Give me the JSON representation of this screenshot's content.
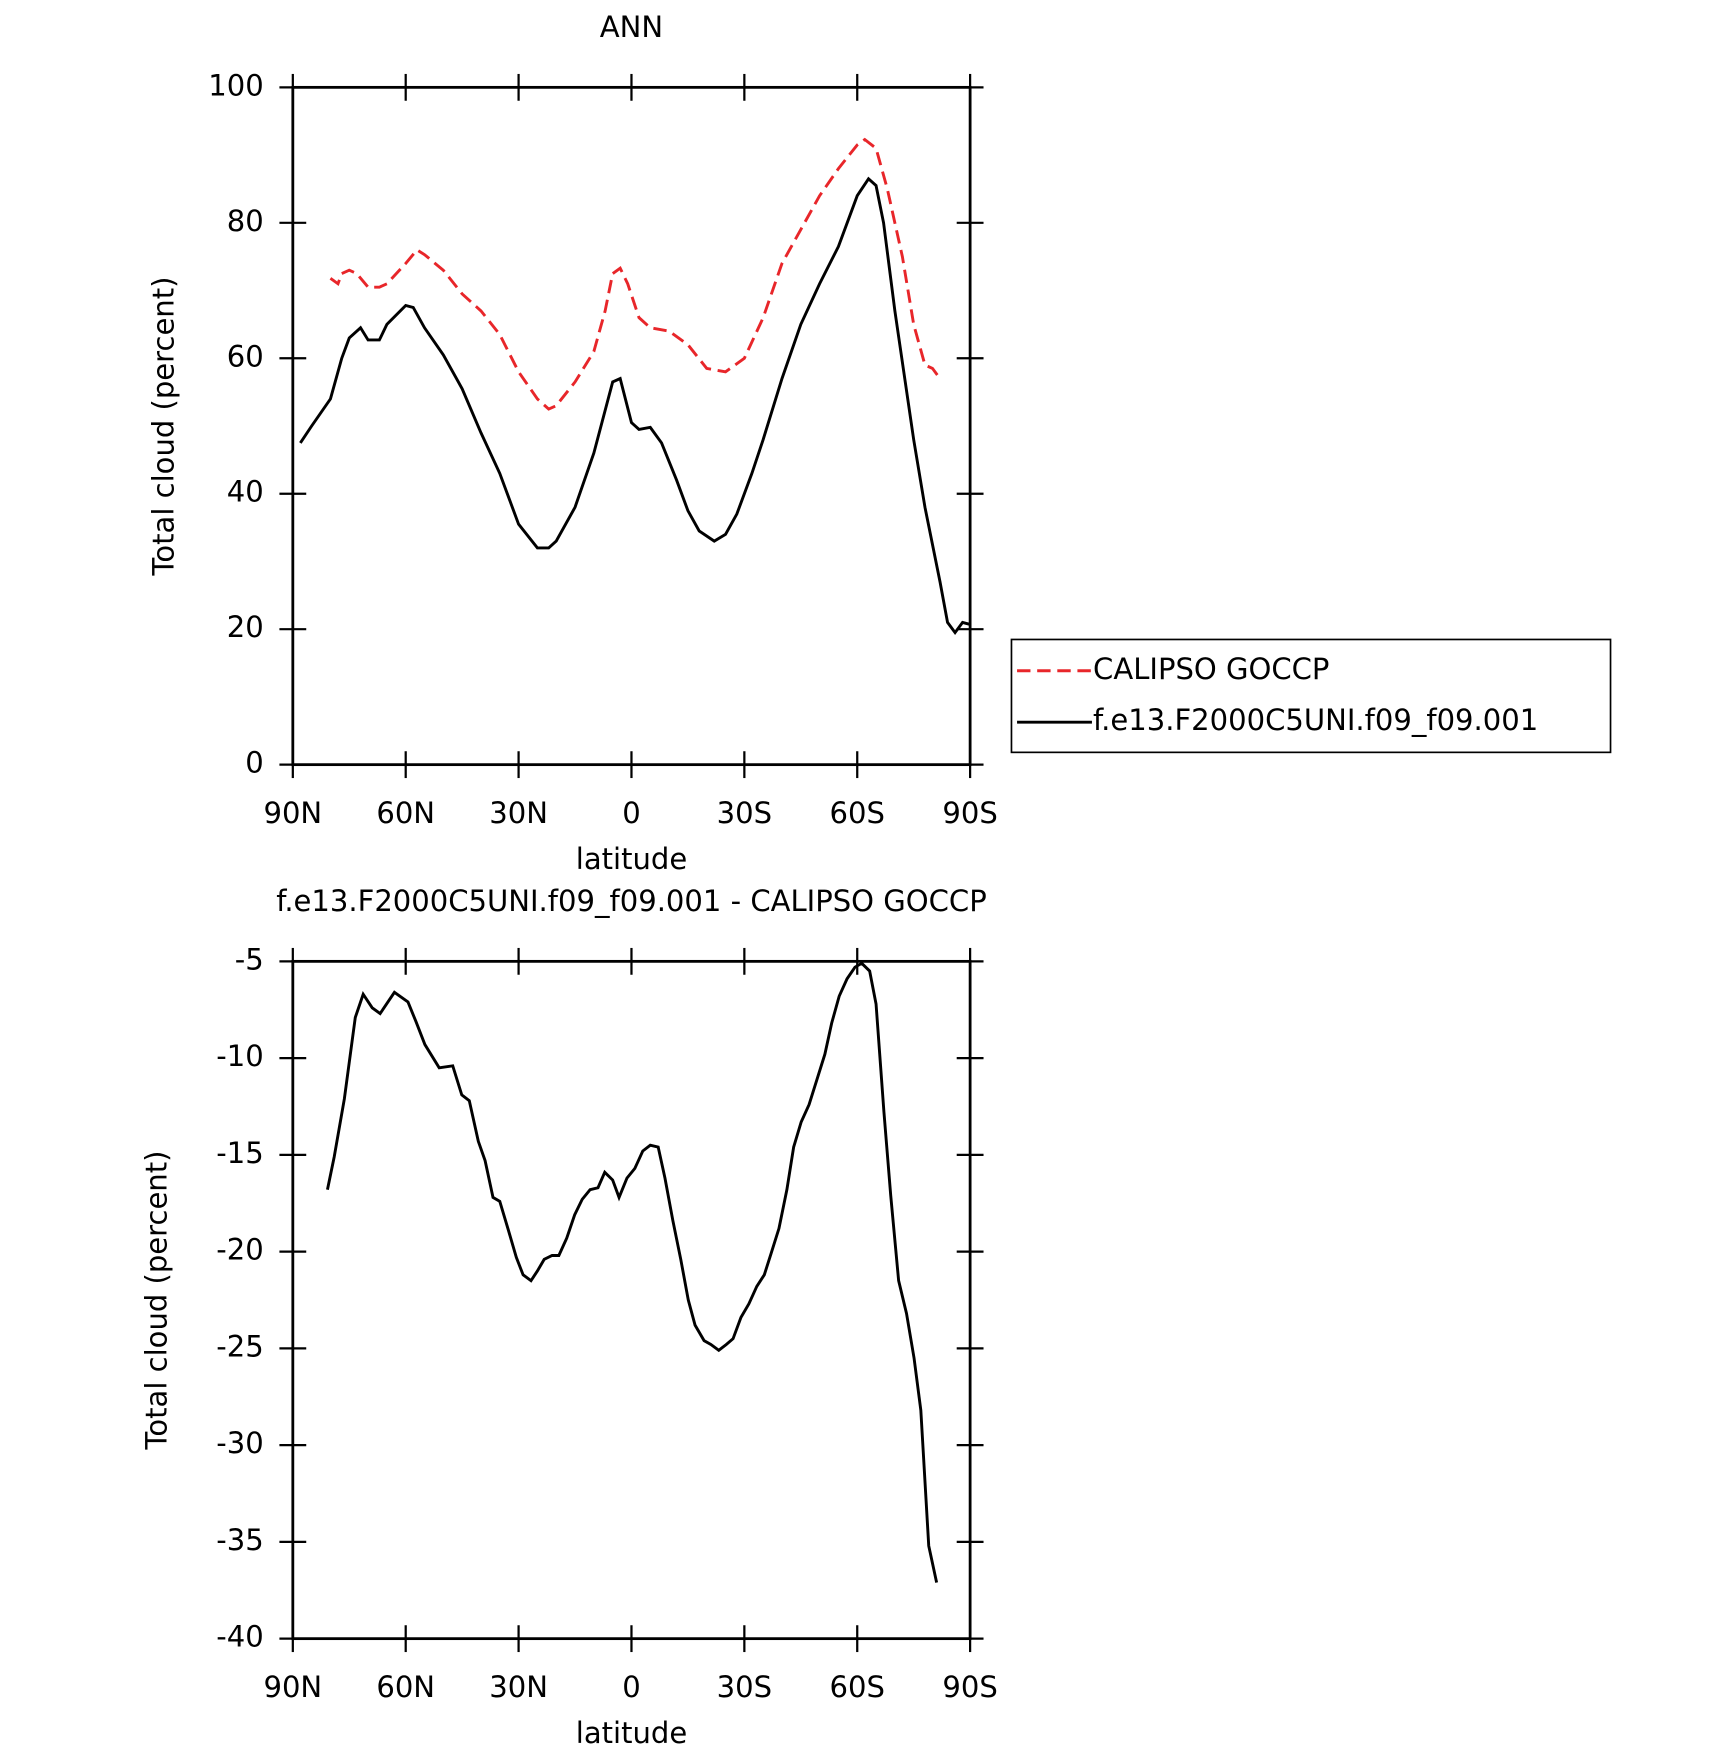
{
  "chart_data": [
    {
      "type": "line",
      "title": "ANN",
      "xlabel": "latitude",
      "ylabel": "Total cloud (percent)",
      "xlim": [
        90,
        -90
      ],
      "xticks": [
        {
          "value": 90,
          "label": "90N"
        },
        {
          "value": 60,
          "label": "60N"
        },
        {
          "value": 30,
          "label": "30N"
        },
        0,
        {
          "value": -30,
          "label": "30S"
        },
        {
          "value": -60,
          "label": "60S"
        },
        {
          "value": -90,
          "label": "90S"
        }
      ],
      "ylim": [
        0,
        100
      ],
      "yticks": [
        0,
        20,
        40,
        60,
        80,
        100
      ],
      "legend": "right",
      "series": [
        {
          "name": "CALIPSO GOCCP",
          "color": "#e8262a",
          "linestyle": "dashed",
          "x": [
            80,
            78,
            77,
            75,
            73,
            70,
            67,
            65,
            60,
            57,
            55,
            50,
            45,
            40,
            35,
            30,
            25,
            22,
            20,
            15,
            10,
            7,
            5,
            3,
            1,
            -2,
            -5,
            -10,
            -15,
            -20,
            -25,
            -30,
            -35,
            -40,
            -45,
            -50,
            -55,
            -60,
            -62,
            -65,
            -68,
            -72,
            -75,
            -78,
            -80,
            -82
          ],
          "values": [
            71.8,
            71,
            72.5,
            73,
            72.5,
            70.5,
            70.5,
            71,
            74,
            76,
            75.3,
            73,
            69.5,
            67,
            63.5,
            58,
            54,
            52.5,
            53,
            56.5,
            61,
            67,
            72.5,
            73.3,
            71,
            66,
            64.5,
            64,
            62,
            58.5,
            58,
            60,
            66,
            74,
            79,
            84,
            88,
            91.5,
            92.3,
            91,
            85,
            75,
            65,
            59,
            58.5,
            57
          ]
        },
        {
          "name": "f.e13.F2000C5UNI.f09_f09.001",
          "color": "#000000",
          "linestyle": "solid",
          "x": [
            88,
            85,
            80,
            77,
            75,
            72,
            70,
            67,
            65,
            60,
            58,
            55,
            50,
            45,
            40,
            35,
            30,
            25,
            22,
            20,
            15,
            10,
            5,
            3,
            0,
            -2,
            -5,
            -8,
            -12,
            -15,
            -18,
            -22,
            -25,
            -28,
            -32,
            -35,
            -40,
            -45,
            -50,
            -55,
            -60,
            -63,
            -65,
            -67,
            -70,
            -75,
            -78,
            -82,
            -84,
            -86,
            -88,
            -90
          ],
          "values": [
            47.5,
            50,
            54,
            60,
            63,
            64.5,
            62.7,
            62.7,
            65,
            67.8,
            67.5,
            64.5,
            60.5,
            55.5,
            49,
            43,
            35.5,
            32,
            32,
            33,
            38,
            46,
            56.5,
            57,
            50.5,
            49.5,
            49.8,
            47.5,
            42,
            37.5,
            34.5,
            33,
            34,
            37,
            43,
            48,
            57,
            65,
            71,
            76.5,
            84,
            86.5,
            85.5,
            80,
            67,
            48,
            38,
            27,
            21,
            19.5,
            21,
            20.7
          ]
        }
      ]
    },
    {
      "type": "line",
      "title": "f.e13.F2000C5UNI.f09_f09.001 - CALIPSO GOCCP",
      "xlabel": "latitude",
      "ylabel": "Total cloud (percent)",
      "xlim": [
        90,
        -90
      ],
      "xticks": [
        {
          "value": 90,
          "label": "90N"
        },
        {
          "value": 60,
          "label": "60N"
        },
        {
          "value": 30,
          "label": "30N"
        },
        0,
        {
          "value": -30,
          "label": "30S"
        },
        {
          "value": -60,
          "label": "60S"
        },
        {
          "value": -90,
          "label": "90S"
        }
      ],
      "ylim": [
        -40,
        -5
      ],
      "yticks": [
        -40,
        -35,
        -30,
        -25,
        -20,
        -15,
        -10,
        -5
      ],
      "series": [
        {
          "color": "#000000",
          "linestyle": "solid",
          "x": [
            80.8,
            79,
            76.3,
            73.4,
            71.3,
            68.9,
            66.8,
            63,
            59.4,
            57.3,
            54.9,
            51.1,
            47.5,
            45.1,
            43.1,
            40.7,
            38.9,
            36.8,
            35,
            32.7,
            30.6,
            28.8,
            26.7,
            25,
            23.2,
            21.1,
            19.3,
            17.2,
            15.1,
            13.1,
            11,
            8.9,
            7.1,
            5,
            3.3,
            1.2,
            -0.9,
            -3,
            -5,
            -7.1,
            -8.9,
            -11,
            -13.1,
            -15.1,
            -16.9,
            -19.3,
            -21.1,
            -23.2,
            -25.2,
            -27,
            -29.1,
            -31.2,
            -33.3,
            -35.3,
            -37.1,
            -39.2,
            -41.3,
            -43.1,
            -45.1,
            -47.2,
            -49.3,
            -51.4,
            -53.2,
            -55.2,
            -57.3,
            -59.4,
            -61.2,
            -63.3,
            -65,
            -67.1,
            -68.9,
            -71,
            -73.1,
            -75.1,
            -76.9,
            -79,
            -81.1
          ],
          "values": [
            -16.8,
            -15.1,
            -12.1,
            -7.9,
            -6.7,
            -7.4,
            -7.7,
            -6.6,
            -7.1,
            -8.1,
            -9.3,
            -10.5,
            -10.4,
            -11.9,
            -12.2,
            -14.3,
            -15.3,
            -17.2,
            -17.4,
            -18.9,
            -20.3,
            -21.2,
            -21.5,
            -21,
            -20.4,
            -20.2,
            -20.2,
            -19.3,
            -18.1,
            -17.3,
            -16.8,
            -16.7,
            -15.9,
            -16.3,
            -17.2,
            -16.2,
            -15.7,
            -14.8,
            -14.5,
            -14.6,
            -16.2,
            -18.4,
            -20.4,
            -22.5,
            -23.8,
            -24.6,
            -24.8,
            -25.1,
            -24.8,
            -24.5,
            -23.4,
            -22.7,
            -21.8,
            -21.2,
            -20.1,
            -18.8,
            -16.8,
            -14.6,
            -13.3,
            -12.4,
            -11.1,
            -9.8,
            -8.2,
            -6.8,
            -5.9,
            -5.3,
            -5.1,
            -5.5,
            -7.2,
            -12.8,
            -17.1,
            -21.5,
            -23.2,
            -25.5,
            -28.2,
            -35.2,
            -37.1
          ]
        }
      ]
    }
  ]
}
